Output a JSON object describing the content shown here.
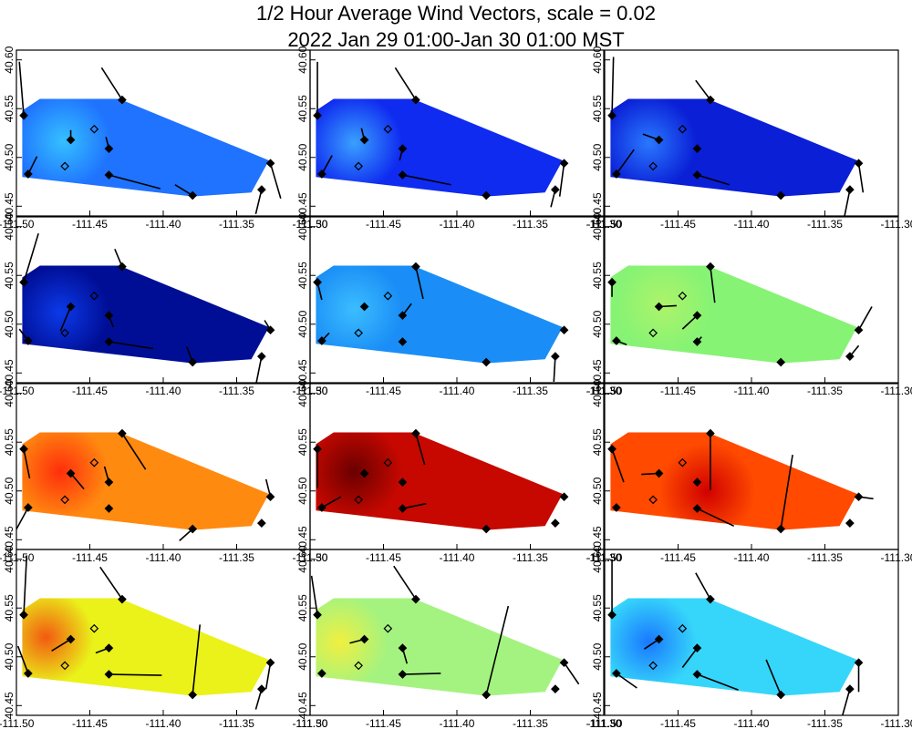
{
  "title": {
    "line1": "1/2 Hour Average Wind Vectors, scale =  0.02",
    "line2": "2022 Jan 29 01:00-Jan 30 01:00 MST"
  },
  "chart_data": {
    "type": "heatmap",
    "layout": "4 rows x 3 columns of small-multiple map panels",
    "xlim": [
      -111.5,
      -111.3
    ],
    "ylim": [
      40.44,
      40.61
    ],
    "x_ticks": [
      "-111.50",
      "-111.45",
      "-111.40",
      "-111.35",
      "-111.30"
    ],
    "y_ticks": [
      "40.45",
      "40.50",
      "40.55",
      "40.60"
    ],
    "grid": false,
    "colormap": "jet",
    "domain_polygon": [
      [
        -111.496,
        40.548
      ],
      [
        -111.484,
        40.56
      ],
      [
        -111.43,
        40.56
      ],
      [
        -111.328,
        40.497
      ],
      [
        -111.34,
        40.464
      ],
      [
        -111.38,
        40.46
      ],
      [
        -111.496,
        40.48
      ]
    ],
    "stations": [
      {
        "lon": -111.495,
        "lat": 40.543,
        "filled": true
      },
      {
        "lon": -111.428,
        "lat": 40.559,
        "filled": true
      },
      {
        "lon": -111.463,
        "lat": 40.518,
        "filled": true
      },
      {
        "lon": -111.447,
        "lat": 40.529,
        "filled": false
      },
      {
        "lon": -111.437,
        "lat": 40.509,
        "filled": true
      },
      {
        "lon": -111.467,
        "lat": 40.491,
        "filled": false
      },
      {
        "lon": -111.492,
        "lat": 40.483,
        "filled": true
      },
      {
        "lon": -111.437,
        "lat": 40.482,
        "filled": true
      },
      {
        "lon": -111.38,
        "lat": 40.461,
        "filled": true
      },
      {
        "lon": -111.327,
        "lat": 40.494,
        "filled": true
      },
      {
        "lon": -111.333,
        "lat": 40.467,
        "filled": true
      }
    ],
    "panels": [
      {
        "fill": "#1f73ff",
        "hot": "#35c0ff",
        "hot_at": [
          -111.468,
          40.517
        ],
        "vectors": [
          [
            -0.003,
            0.055
          ],
          [
            -0.014,
            0.033
          ],
          [
            0,
            0.01
          ],
          [
            0,
            0
          ],
          [
            -0.002,
            0.012
          ],
          [
            0,
            0
          ],
          [
            0.006,
            0.018
          ],
          [
            0.035,
            -0.014
          ],
          [
            -0.012,
            0.011
          ],
          [
            0.007,
            -0.036
          ],
          [
            -0.004,
            -0.025
          ]
        ]
      },
      {
        "fill": "#0f2bf0",
        "hot": "#3aa0ff",
        "hot_at": [
          -111.47,
          40.515
        ],
        "vectors": [
          [
            0,
            0.055
          ],
          [
            -0.014,
            0.033
          ],
          [
            -0.002,
            0.012
          ],
          [
            0,
            0
          ],
          [
            -0.002,
            -0.012
          ],
          [
            0,
            0
          ],
          [
            0.007,
            0.019
          ],
          [
            0.033,
            -0.01
          ],
          [
            0,
            0
          ],
          [
            -0.003,
            -0.034
          ],
          [
            -0.003,
            -0.018
          ]
        ]
      },
      {
        "fill": "#0a1fd6",
        "hot": "#2a78ff",
        "hot_at": [
          -111.47,
          40.515
        ],
        "vectors": [
          [
            0.001,
            0.06
          ],
          [
            -0.01,
            0.02
          ],
          [
            -0.011,
            0.006
          ],
          [
            0,
            0
          ],
          [
            0,
            0
          ],
          [
            0,
            0
          ],
          [
            0.012,
            0.025
          ],
          [
            0.022,
            -0.01
          ],
          [
            0,
            0
          ],
          [
            0.003,
            -0.03
          ],
          [
            -0.004,
            -0.03
          ]
        ]
      },
      {
        "fill": "#000e96",
        "hot": "#0c3ae8",
        "hot_at": [
          -111.47,
          40.512
        ],
        "vectors": [
          [
            0.01,
            0.05
          ],
          [
            -0.005,
            0.018
          ],
          [
            -0.007,
            -0.025
          ],
          [
            0,
            0
          ],
          [
            0.003,
            -0.012
          ],
          [
            0,
            0
          ],
          [
            -0.006,
            0.012
          ],
          [
            0.03,
            -0.007
          ],
          [
            -0.004,
            0.016
          ],
          [
            -0.004,
            0.01
          ],
          [
            -0.004,
            -0.03
          ]
        ]
      },
      {
        "fill": "#1a8ef6",
        "hot": "#3cbdff",
        "hot_at": [
          -111.47,
          40.515
        ],
        "vectors": [
          [
            0.003,
            -0.018
          ],
          [
            0.005,
            -0.033
          ],
          [
            0,
            0
          ],
          [
            0,
            0
          ],
          [
            0.006,
            0.012
          ],
          [
            0,
            0
          ],
          [
            0.005,
            0.008
          ],
          [
            0,
            0
          ],
          [
            0,
            0
          ],
          [
            0,
            0
          ],
          [
            -0.001,
            -0.026
          ]
        ]
      },
      {
        "fill": "#86f374",
        "hot": "#aef36a",
        "hot_at": [
          -111.46,
          40.52
        ],
        "vectors": [
          [
            0,
            -0.015
          ],
          [
            0.003,
            -0.037
          ],
          [
            0.012,
            0.001
          ],
          [
            0,
            0
          ],
          [
            -0.01,
            -0.014
          ],
          [
            0,
            0
          ],
          [
            0.007,
            -0.004
          ],
          [
            0.003,
            0.005
          ],
          [
            0,
            0
          ],
          [
            0.009,
            0.024
          ],
          [
            0.006,
            0.011
          ]
        ]
      },
      {
        "fill": "#ff8a10",
        "hot": "#ff2e0c",
        "hot_at": [
          -111.47,
          40.52
        ],
        "vectors": [
          [
            0.004,
            -0.03
          ],
          [
            0.016,
            -0.037
          ],
          [
            0.009,
            -0.016
          ],
          [
            0,
            0
          ],
          [
            -0.003,
            0.016
          ],
          [
            0,
            0
          ],
          [
            -0.009,
            -0.025
          ],
          [
            0,
            0
          ],
          [
            -0.009,
            -0.012
          ],
          [
            -0.003,
            0.018
          ],
          [
            0,
            0
          ]
        ]
      },
      {
        "fill": "#c60800",
        "hot": "#6a0000",
        "hot_at": [
          -111.47,
          40.52
        ],
        "vectors": [
          [
            0,
            -0.04
          ],
          [
            0.006,
            -0.032
          ],
          [
            0,
            0
          ],
          [
            0,
            0
          ],
          [
            0,
            0
          ],
          [
            0,
            0
          ],
          [
            0.013,
            0.011
          ],
          [
            0.016,
            0.005
          ],
          [
            0,
            0
          ],
          [
            0,
            0
          ],
          [
            0,
            0
          ]
        ]
      },
      {
        "fill": "#ff4a00",
        "hot": "#d00000",
        "hot_at": [
          -111.43,
          40.5
        ],
        "vectors": [
          [
            0.008,
            -0.034
          ],
          [
            0,
            -0.058
          ],
          [
            -0.012,
            -0.001
          ],
          [
            0,
            0
          ],
          [
            0,
            0
          ],
          [
            0,
            0
          ],
          [
            0,
            0
          ],
          [
            0.025,
            -0.018
          ],
          [
            0.008,
            0.076
          ],
          [
            0.01,
            -0.002
          ],
          [
            0,
            0
          ]
        ]
      },
      {
        "fill": "#eaf21a",
        "hot": "#f25a10",
        "hot_at": [
          -111.48,
          40.52
        ],
        "vectors": [
          [
            0.002,
            0.061
          ],
          [
            -0.015,
            0.033
          ],
          [
            -0.013,
            -0.012
          ],
          [
            0,
            0
          ],
          [
            -0.009,
            -0.005
          ],
          [
            0,
            0
          ],
          [
            -0.007,
            0.028
          ],
          [
            0.036,
            -0.001
          ],
          [
            0.005,
            0.072
          ],
          [
            -0.003,
            -0.027
          ],
          [
            -0.004,
            -0.021
          ]
        ]
      },
      {
        "fill": "#a4f380",
        "hot": "#f0f040",
        "hot_at": [
          -111.48,
          40.515
        ],
        "vectors": [
          [
            -0.004,
            0.04
          ],
          [
            -0.015,
            0.034
          ],
          [
            -0.01,
            -0.004
          ],
          [
            0,
            0
          ],
          [
            0.003,
            -0.016
          ],
          [
            0,
            0
          ],
          [
            0,
            0
          ],
          [
            0.026,
            0.001
          ],
          [
            0.015,
            0.091
          ],
          [
            0.01,
            -0.022
          ],
          [
            0,
            0
          ]
        ]
      },
      {
        "fill": "#36d6fa",
        "hot": "#1a78ff",
        "hot_at": [
          -111.47,
          40.515
        ],
        "vectors": [
          [
            0,
            0.057
          ],
          [
            -0.01,
            0.027
          ],
          [
            -0.01,
            -0.01
          ],
          [
            0,
            0
          ],
          [
            -0.01,
            -0.02
          ],
          [
            0,
            0
          ],
          [
            0.014,
            -0.015
          ],
          [
            0.028,
            -0.016
          ],
          [
            -0.01,
            0.036
          ],
          [
            0,
            -0.03
          ],
          [
            -0.005,
            -0.027
          ]
        ]
      }
    ]
  }
}
